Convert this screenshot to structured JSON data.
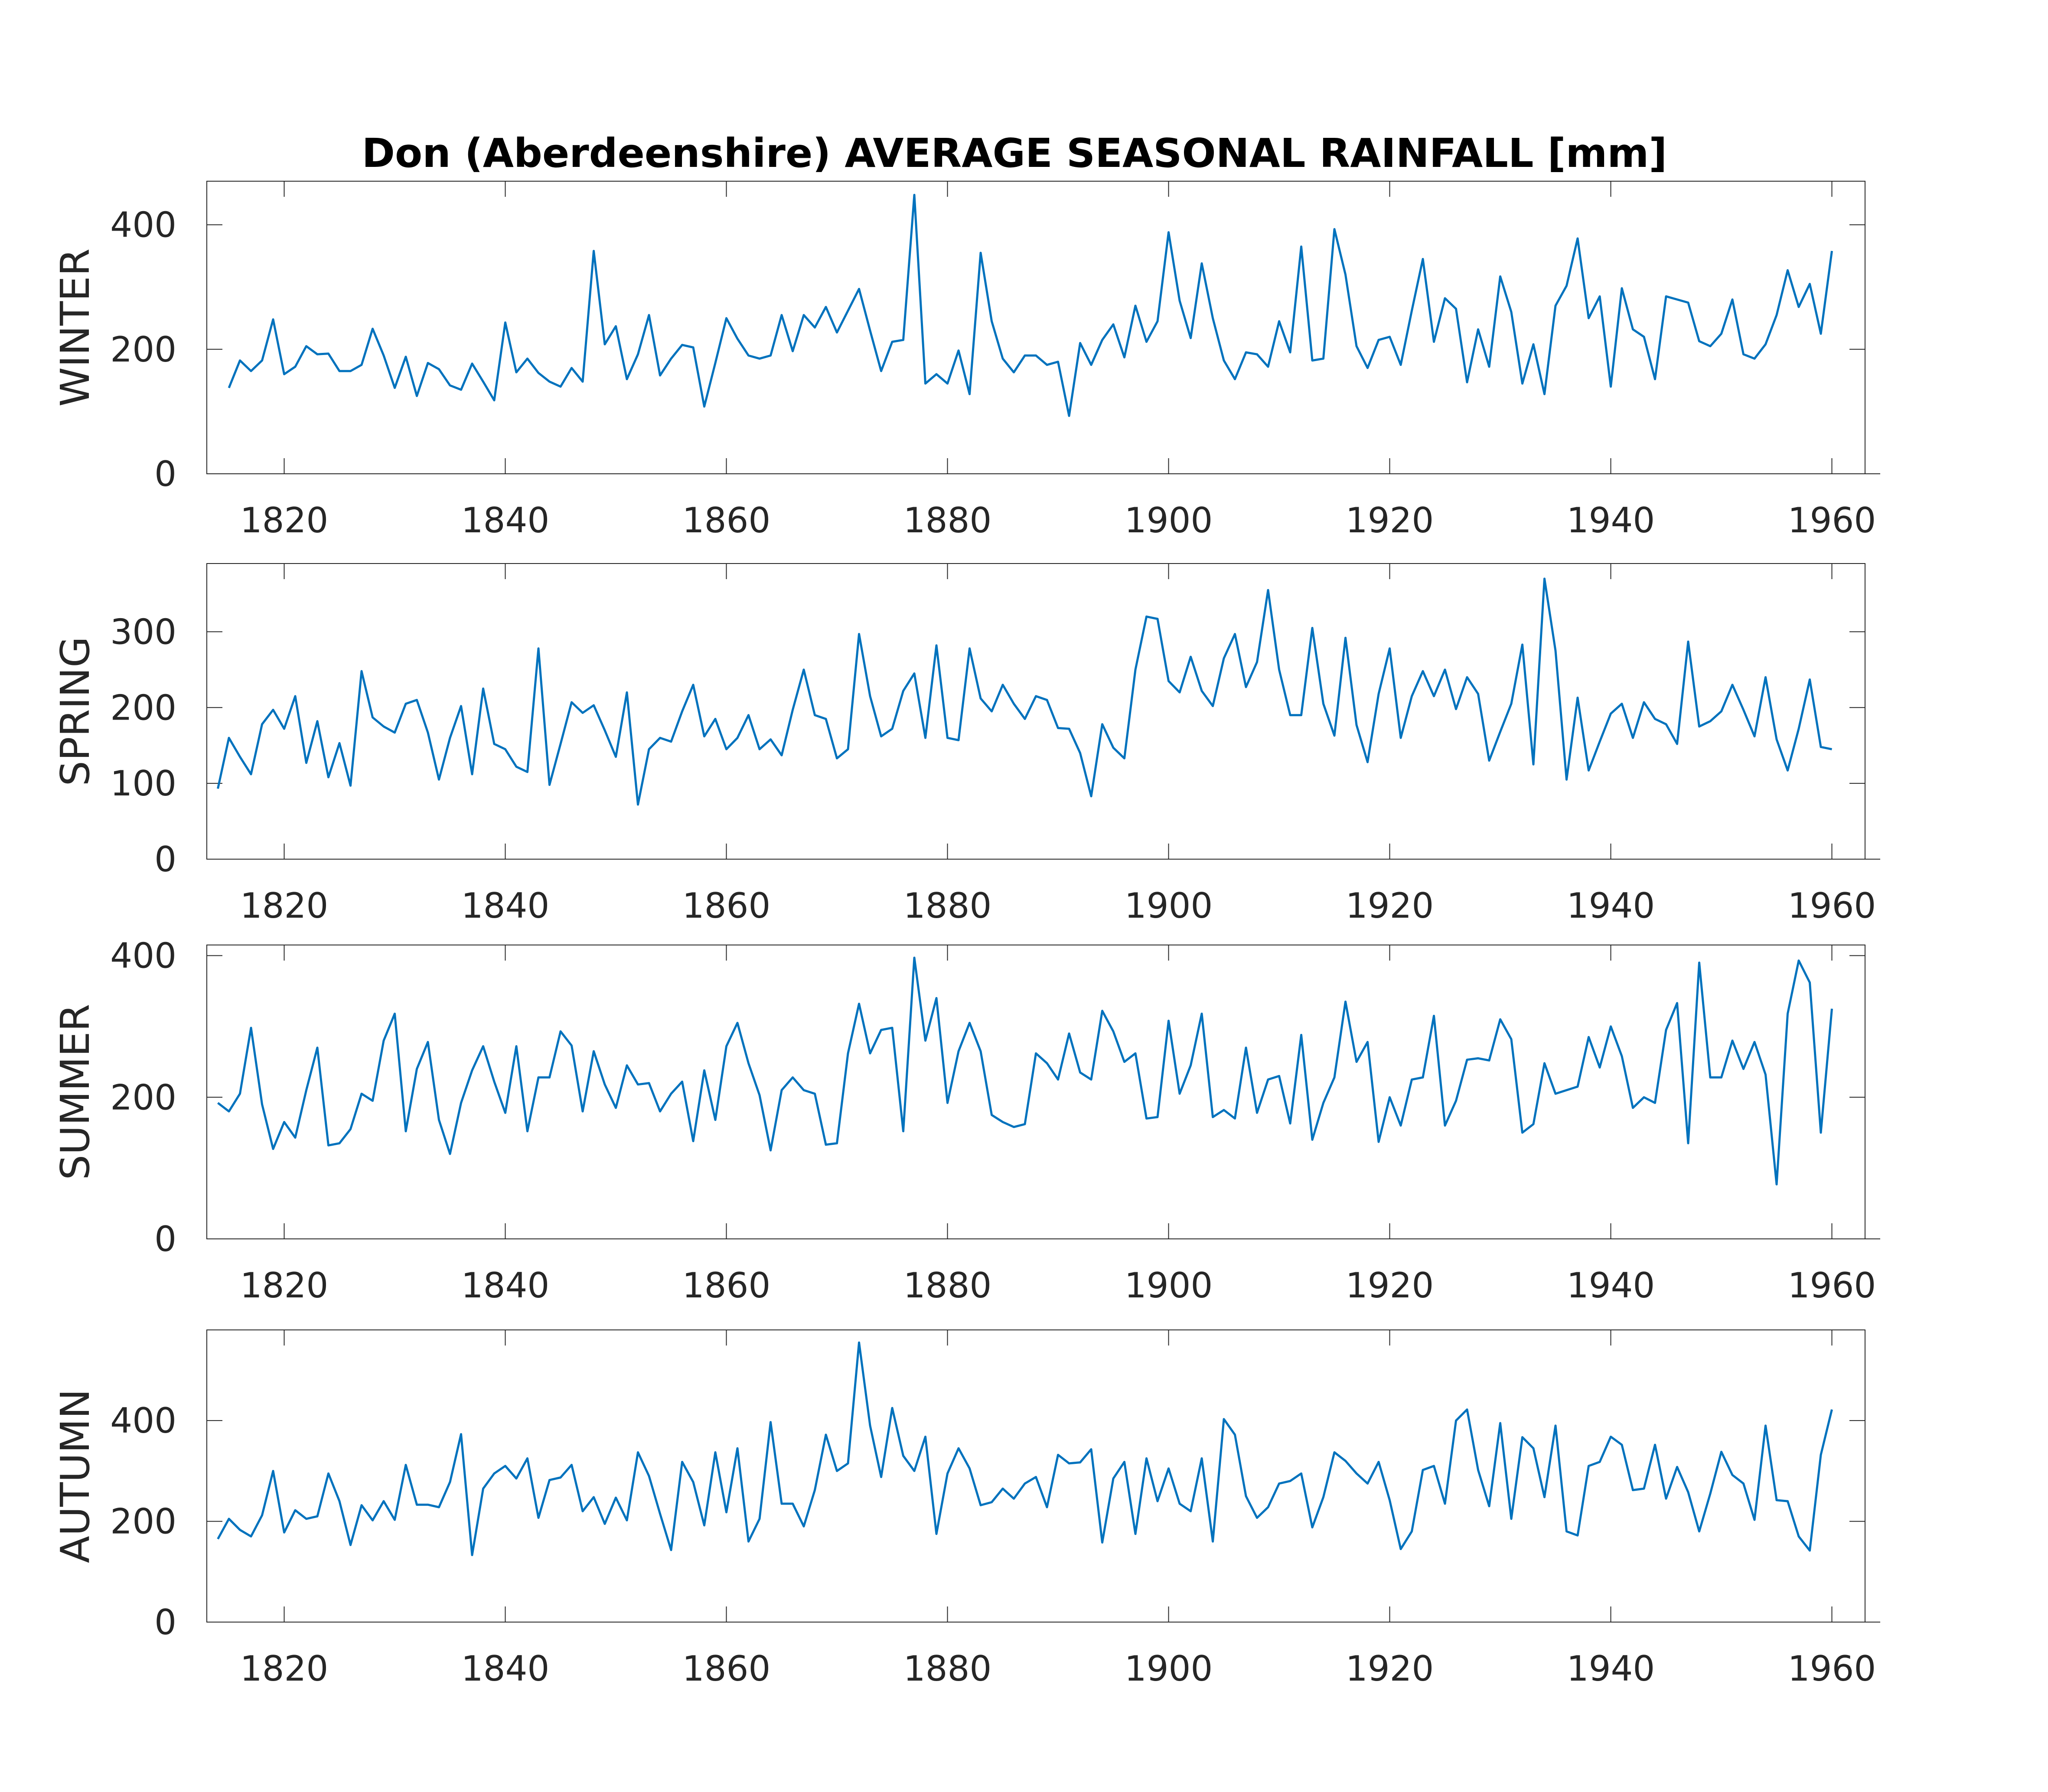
{
  "figure": {
    "title": "Don (Aberdeenshire) AVERAGE SEASONAL RAINFALL [mm]"
  },
  "style": {
    "line_color": "#0072BD",
    "axis_color": "#262626",
    "background": "#ffffff"
  },
  "chart_data": [
    {
      "type": "line",
      "title": "Don (Aberdeenshire) AVERAGE SEASONAL RAINFALL [mm]",
      "ylabel": "WINTER",
      "xlabel": "",
      "xlim": [
        1813,
        1963
      ],
      "ylim": [
        0,
        470
      ],
      "xticks": [
        1820,
        1840,
        1860,
        1880,
        1900,
        1920,
        1940,
        1960
      ],
      "yticks": [
        0,
        200,
        400
      ],
      "grid": false,
      "series": [
        {
          "x_start": 1815,
          "x_end": 1960,
          "values": [
            138,
            182,
            165,
            182,
            248,
            160,
            172,
            205,
            192,
            193,
            165,
            165,
            175,
            233,
            190,
            138,
            188,
            125,
            178,
            168,
            142,
            135,
            177,
            148,
            118,
            243,
            163,
            185,
            162,
            148,
            140,
            170,
            148,
            358,
            208,
            237,
            152,
            192,
            255,
            158,
            185,
            207,
            203,
            108,
            178,
            250,
            217,
            190,
            185,
            190,
            255,
            197,
            255,
            235,
            268,
            227,
            262,
            297,
            230,
            165,
            212,
            215,
            448,
            145,
            160,
            145,
            198,
            128,
            355,
            245,
            185,
            163,
            190,
            190,
            175,
            180,
            93,
            210,
            175,
            215,
            240,
            187,
            270,
            212,
            245,
            388,
            278,
            218,
            338,
            250,
            182,
            152,
            195,
            192,
            172,
            245,
            195,
            365,
            182,
            185,
            393,
            320,
            205,
            170,
            215,
            220,
            175,
            262,
            345,
            212,
            282,
            265,
            147,
            232,
            172,
            317,
            260,
            145,
            208,
            128,
            270,
            302,
            378,
            250,
            285,
            140,
            298,
            232,
            220,
            152,
            285,
            280,
            275,
            213,
            205,
            225,
            280,
            192,
            185,
            208,
            255,
            327,
            268,
            305,
            225,
            358
          ]
        }
      ]
    },
    {
      "type": "line",
      "title": "",
      "ylabel": "SPRING",
      "xlabel": "",
      "xlim": [
        1813,
        1963
      ],
      "ylim": [
        0,
        390
      ],
      "xticks": [
        1820,
        1840,
        1860,
        1880,
        1900,
        1920,
        1940,
        1960
      ],
      "yticks": [
        0,
        100,
        200,
        300
      ],
      "grid": false,
      "series": [
        {
          "x_start": 1814,
          "x_end": 1960,
          "values": [
            93,
            160,
            135,
            112,
            178,
            197,
            172,
            215,
            127,
            182,
            108,
            153,
            97,
            248,
            187,
            175,
            167,
            205,
            210,
            167,
            105,
            160,
            202,
            112,
            225,
            152,
            145,
            122,
            115,
            278,
            98,
            152,
            207,
            193,
            203,
            170,
            135,
            220,
            72,
            145,
            160,
            155,
            195,
            230,
            162,
            185,
            145,
            160,
            190,
            145,
            158,
            137,
            197,
            250,
            190,
            185,
            133,
            145,
            297,
            215,
            162,
            172,
            222,
            245,
            160,
            282,
            160,
            157,
            278,
            212,
            195,
            230,
            205,
            185,
            215,
            210,
            173,
            172,
            140,
            83,
            178,
            147,
            133,
            250,
            320,
            317,
            235,
            220,
            267,
            222,
            202,
            265,
            297,
            227,
            260,
            355,
            250,
            190,
            190,
            305,
            205,
            163,
            292,
            177,
            128,
            218,
            278,
            160,
            215,
            248,
            215,
            250,
            198,
            240,
            218,
            130,
            168,
            205,
            283,
            125,
            370,
            275,
            105,
            213,
            117,
            155,
            192,
            205,
            160,
            207,
            185,
            178,
            152,
            287,
            175,
            182,
            195,
            230,
            197,
            162,
            240,
            158,
            117,
            172,
            237,
            148,
            145
          ]
        }
      ]
    },
    {
      "type": "line",
      "title": "",
      "ylabel": "SUMMER",
      "xlabel": "",
      "xlim": [
        1813,
        1963
      ],
      "ylim": [
        0,
        415
      ],
      "xticks": [
        1820,
        1840,
        1860,
        1880,
        1900,
        1920,
        1940,
        1960
      ],
      "yticks": [
        0,
        200,
        400
      ],
      "grid": false,
      "series": [
        {
          "x_start": 1814,
          "x_end": 1960,
          "values": [
            192,
            180,
            205,
            298,
            190,
            127,
            165,
            143,
            210,
            270,
            132,
            135,
            155,
            205,
            195,
            280,
            318,
            152,
            240,
            278,
            168,
            120,
            192,
            238,
            272,
            222,
            178,
            272,
            152,
            228,
            228,
            293,
            273,
            180,
            265,
            218,
            185,
            245,
            218,
            220,
            180,
            205,
            222,
            138,
            238,
            168,
            272,
            305,
            248,
            203,
            125,
            210,
            228,
            210,
            205,
            133,
            135,
            262,
            332,
            262,
            295,
            298,
            152,
            397,
            280,
            340,
            192,
            265,
            305,
            265,
            175,
            165,
            158,
            162,
            262,
            248,
            225,
            290,
            235,
            225,
            322,
            293,
            250,
            262,
            170,
            172,
            308,
            205,
            245,
            318,
            172,
            182,
            170,
            270,
            178,
            225,
            230,
            163,
            288,
            140,
            192,
            228,
            335,
            250,
            278,
            137,
            200,
            160,
            225,
            228,
            315,
            160,
            195,
            253,
            255,
            252,
            310,
            282,
            150,
            162,
            248,
            205,
            210,
            215,
            285,
            242,
            300,
            258,
            185,
            200,
            192,
            295,
            333,
            135,
            390,
            228,
            228,
            280,
            240,
            278,
            232,
            77,
            318,
            393,
            362,
            150,
            325
          ]
        }
      ]
    },
    {
      "type": "line",
      "title": "",
      "ylabel": "AUTUMN",
      "xlabel": "",
      "xlim": [
        1813,
        1963
      ],
      "ylim": [
        0,
        580
      ],
      "xticks": [
        1820,
        1840,
        1860,
        1880,
        1900,
        1920,
        1940,
        1960
      ],
      "yticks": [
        0,
        200,
        400
      ],
      "grid": false,
      "series": [
        {
          "x_start": 1814,
          "x_end": 1960,
          "values": [
            165,
            205,
            183,
            170,
            212,
            300,
            178,
            222,
            205,
            210,
            295,
            240,
            153,
            232,
            202,
            240,
            203,
            312,
            233,
            233,
            228,
            278,
            373,
            133,
            265,
            295,
            310,
            285,
            325,
            207,
            282,
            287,
            312,
            220,
            248,
            195,
            247,
            202,
            337,
            290,
            215,
            143,
            318,
            278,
            192,
            337,
            218,
            345,
            160,
            205,
            397,
            235,
            235,
            190,
            262,
            372,
            300,
            315,
            555,
            390,
            288,
            425,
            330,
            300,
            368,
            175,
            295,
            345,
            305,
            232,
            238,
            265,
            245,
            275,
            288,
            228,
            332,
            315,
            317,
            343,
            158,
            285,
            318,
            175,
            325,
            240,
            305,
            235,
            220,
            325,
            160,
            403,
            372,
            250,
            207,
            228,
            275,
            280,
            295,
            188,
            248,
            337,
            320,
            295,
            275,
            318,
            242,
            145,
            180,
            302,
            310,
            235,
            400,
            422,
            302,
            230,
            395,
            205,
            367,
            345,
            248,
            390,
            180,
            172,
            310,
            318,
            368,
            352,
            262,
            265,
            352,
            245,
            308,
            258,
            180,
            255,
            338,
            292,
            275,
            203,
            390,
            242,
            240,
            170,
            142,
            332,
            422
          ]
        }
      ]
    }
  ]
}
